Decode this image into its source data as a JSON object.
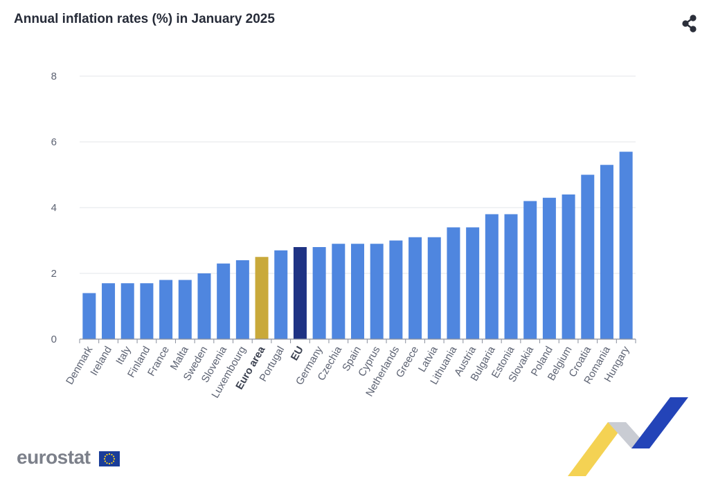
{
  "header": {
    "title": "Annual inflation rates (%) in January 2025"
  },
  "toolbar": {
    "share_icon": "share-icon"
  },
  "branding": {
    "logo_text": "eurostat",
    "flag_icon": "eu-flag-icon"
  },
  "colors": {
    "bar": "#4f86df",
    "euro_area": "#c9a93a",
    "eu": "#1f3384",
    "grid": "#e3e5ea",
    "axis": "#8a8f9c"
  },
  "chart_data": {
    "type": "bar",
    "title": "Annual inflation rates (%) in January 2025",
    "xlabel": "",
    "ylabel": "",
    "ylim": [
      0,
      8
    ],
    "yticks": [
      0,
      2,
      4,
      6,
      8
    ],
    "grid": true,
    "categories": [
      "Denmark",
      "Ireland",
      "Italy",
      "Finland",
      "France",
      "Malta",
      "Sweden",
      "Slovenia",
      "Luxembourg",
      "Euro area",
      "Portugal",
      "EU",
      "Germany",
      "Czechia",
      "Spain",
      "Cyprus",
      "Netherlands",
      "Greece",
      "Latvia",
      "Lithuania",
      "Austria",
      "Bulgaria",
      "Estonia",
      "Slovakia",
      "Poland",
      "Belgium",
      "Croatia",
      "Romania",
      "Hungary"
    ],
    "values": [
      1.4,
      1.7,
      1.7,
      1.7,
      1.8,
      1.8,
      2.0,
      2.3,
      2.4,
      2.5,
      2.7,
      2.8,
      2.8,
      2.9,
      2.9,
      2.9,
      3.0,
      3.1,
      3.1,
      3.4,
      3.4,
      3.8,
      3.8,
      4.2,
      4.3,
      4.4,
      5.0,
      5.3,
      5.7
    ],
    "highlights": {
      "Euro area": "euro_area",
      "EU": "eu"
    }
  }
}
